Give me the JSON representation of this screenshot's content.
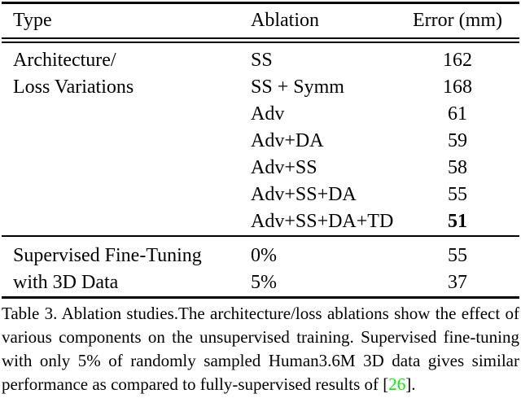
{
  "colors": {
    "background": "#ffffff",
    "text": "#000000",
    "citation_green": "#00ee00"
  },
  "table": {
    "headers": [
      "Type",
      "Ablation",
      "Error (mm)"
    ],
    "rows": [
      {
        "type": "Architecture/",
        "ablation": "SS",
        "error": "162",
        "bold": false
      },
      {
        "type": "Loss Variations",
        "ablation": "SS + Symm",
        "error": "168",
        "bold": false
      },
      {
        "type": "",
        "ablation": "Adv",
        "error": "61",
        "bold": false
      },
      {
        "type": "",
        "ablation": "Adv+DA",
        "error": "59",
        "bold": false
      },
      {
        "type": "",
        "ablation": "Adv+SS",
        "error": "58",
        "bold": false
      },
      {
        "type": "",
        "ablation": "Adv+SS+DA",
        "error": "55",
        "bold": false
      },
      {
        "type": "",
        "ablation": "Adv+SS+DA+TD",
        "error": "51",
        "bold": true
      },
      {
        "type": "Supervised Fine-Tuning",
        "ablation": "0%",
        "error": "55",
        "bold": false
      },
      {
        "type": "with 3D Data",
        "ablation": "5%",
        "error": "37",
        "bold": false
      }
    ]
  },
  "caption": {
    "text": "Table 3. Ablation studies.The architecture/loss ablations show the effect of various components on the unsupervised training. Supervised fine-tuning with only 5% of randomly sampled Human3.6M 3D data gives similar performance as compared to fully-supervised results of",
    "citation_open": " [",
    "citation_number": "26",
    "citation_close": "]."
  }
}
